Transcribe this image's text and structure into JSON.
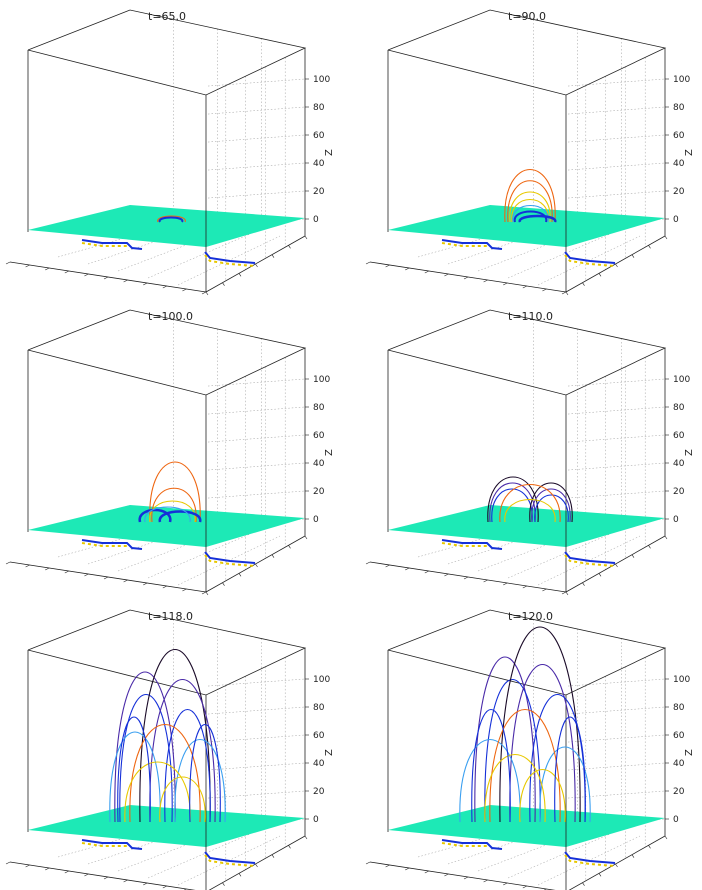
{
  "figure": {
    "panels": [
      {
        "title": "t=65.0",
        "stage": 0
      },
      {
        "title": "t=90.0",
        "stage": 1
      },
      {
        "title": "t=100.0",
        "stage": 2
      },
      {
        "title": "t=110.0",
        "stage": 3
      },
      {
        "title": "t=118.0",
        "stage": 4
      },
      {
        "title": "t=120.0",
        "stage": 5
      }
    ],
    "z_axis_label": "Z",
    "z_ticks": [
      0,
      20,
      40,
      60,
      80,
      100
    ],
    "z_range": [
      -20,
      115
    ],
    "colors": {
      "plane": "#1de9b6",
      "box": "#222222",
      "grid": "#9a9a9a",
      "loop_orange": "#ee6611",
      "loop_yellow": "#e8c800",
      "loop_lightblue": "#3a9ff0",
      "loop_blue": "#1530d8",
      "loop_purple": "#4a2aa8",
      "loop_dark": "#1a0a28"
    }
  }
}
